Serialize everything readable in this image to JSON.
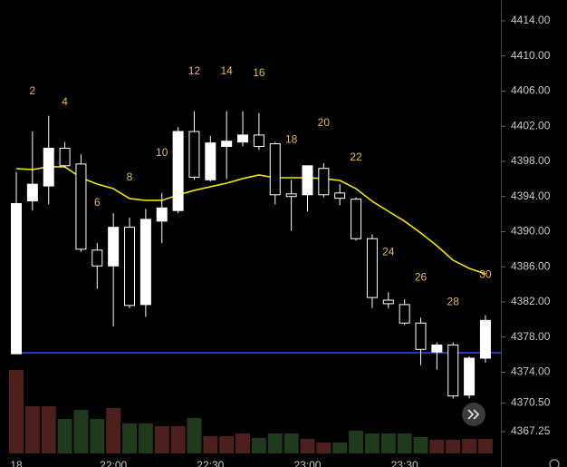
{
  "chart_data": {
    "type": "candlestick",
    "categories": [
      null,
      2,
      null,
      4,
      null,
      6,
      null,
      8,
      null,
      10,
      null,
      12,
      null,
      14,
      null,
      16,
      null,
      18,
      null,
      20,
      null,
      22,
      null,
      24,
      null,
      26,
      null,
      28,
      null,
      30
    ],
    "open": [
      4376.1,
      4393.5,
      4395.2,
      4399.5,
      4397.7,
      4387.9,
      4386.1,
      4390.5,
      4381.7,
      4391.2,
      4392.4,
      4401.4,
      4395.9,
      4399.7,
      4400.2,
      4401.0,
      4400.0,
      4394.3,
      4394.2,
      4397.2,
      4394.4,
      4393.7,
      4389.2,
      4382.2,
      4381.7,
      4379.6,
      4376.3,
      4377.1,
      4371.4,
      4375.6
    ],
    "high": [
      4396.8,
      4401.4,
      4403.2,
      4400.2,
      4398.8,
      4388.7,
      4392.1,
      4391.6,
      4392.6,
      4394.4,
      4401.9,
      4403.7,
      4400.9,
      4403.7,
      4403.7,
      4403.5,
      4400.2,
      4395.9,
      4397.5,
      4397.8,
      4395.4,
      4393.9,
      4389.7,
      4383.1,
      4382.3,
      4380.2,
      4377.4,
      4377.4,
      4375.8,
      4380.5
    ],
    "low": [
      4376.1,
      4392.4,
      4393.1,
      4397.3,
      4387.7,
      4383.5,
      4379.2,
      4381.3,
      4380.3,
      4388.7,
      4392.1,
      4395.9,
      4395.7,
      4396.0,
      4399.7,
      4399.3,
      4393.1,
      4390.1,
      4392.3,
      4393.9,
      4393.0,
      4389.0,
      4381.3,
      4381.3,
      4379.4,
      4374.8,
      4374.3,
      4371.0,
      4371.0,
      4375.1
    ],
    "close": [
      4393.2,
      4395.4,
      4399.5,
      4397.5,
      4388.0,
      4386.1,
      4390.5,
      4381.6,
      4391.4,
      4392.7,
      4401.4,
      4396.2,
      4400.1,
      4400.3,
      4401.0,
      4399.7,
      4394.2,
      4394.0,
      4397.5,
      4394.2,
      4393.8,
      4389.2,
      4382.5,
      4381.8,
      4379.6,
      4376.6,
      4377.1,
      4371.3,
      4375.6,
      4379.9
    ],
    "up_color": "#ffffff",
    "down_color": "#000000",
    "moving_average": {
      "color": "#f2e600",
      "values": [
        4397.17,
        4397.07,
        4397.38,
        4397.38,
        4396.14,
        4395.42,
        4394.9,
        4393.77,
        4393.56,
        4393.56,
        4394.18,
        4394.7,
        4395.11,
        4395.52,
        4396.04,
        4396.45,
        4396.14,
        4396.14,
        4396.14,
        4396.04,
        4395.83,
        4394.9,
        4393.46,
        4392.32,
        4391.19,
        4389.85,
        4388.4,
        4386.75,
        4385.82,
        4385.2
      ]
    },
    "level_line": {
      "value": 4376.22,
      "color": "#2a4bff"
    },
    "volume": {
      "values": [
        92,
        52,
        52,
        38,
        48,
        38,
        50,
        33,
        33,
        30,
        30,
        39,
        19,
        19,
        22,
        17,
        22,
        22,
        16,
        12,
        12,
        25,
        22,
        22,
        22,
        18,
        15,
        15,
        16,
        16
      ],
      "colors": [
        "#4d1f1d",
        "#4d1f1d",
        "#4d1f1d",
        "#1f3a1c",
        "#1f3a1c",
        "#1f3a1c",
        "#4d1f1d",
        "#1f3a1c",
        "#1f3a1c",
        "#4d1f1d",
        "#4d1f1d",
        "#1f3a1c",
        "#4d1f1d",
        "#4d1f1d",
        "#4d1f1d",
        "#1f3a1c",
        "#1f3a1c",
        "#1f3a1c",
        "#4d1f1d",
        "#4d1f1d",
        "#1f3a1c",
        "#1f3a1c",
        "#1f3a1c",
        "#1f3a1c",
        "#1f3a1c",
        "#1f3a1c",
        "#4d1f1d",
        "#4d1f1d",
        "#4d1f1d",
        "#4d1f1d"
      ]
    },
    "ylim": [
      4364.76,
      4416.37
    ],
    "yticks": [
      {
        "value": 4414,
        "label": "4414.00"
      },
      {
        "value": 4410,
        "label": "4410.00"
      },
      {
        "value": 4406,
        "label": "4406.00"
      },
      {
        "value": 4402,
        "label": "4402.00"
      },
      {
        "value": 4398,
        "label": "4398.00"
      },
      {
        "value": 4394,
        "label": "4394.00"
      },
      {
        "value": 4390,
        "label": "4390.00"
      },
      {
        "value": 4386,
        "label": "4386.00"
      },
      {
        "value": 4382,
        "label": "4382.00"
      },
      {
        "value": 4378,
        "label": "4378.00"
      },
      {
        "value": 4374,
        "label": "4374.00"
      },
      {
        "value": 4370.5,
        "label": "4370.50"
      },
      {
        "value": 4367.25,
        "label": "4367.25"
      }
    ],
    "x_labels": [
      "18",
      "22:00",
      "22:30",
      "23:00",
      "23:30"
    ],
    "label_color": "#e8b84a"
  }
}
